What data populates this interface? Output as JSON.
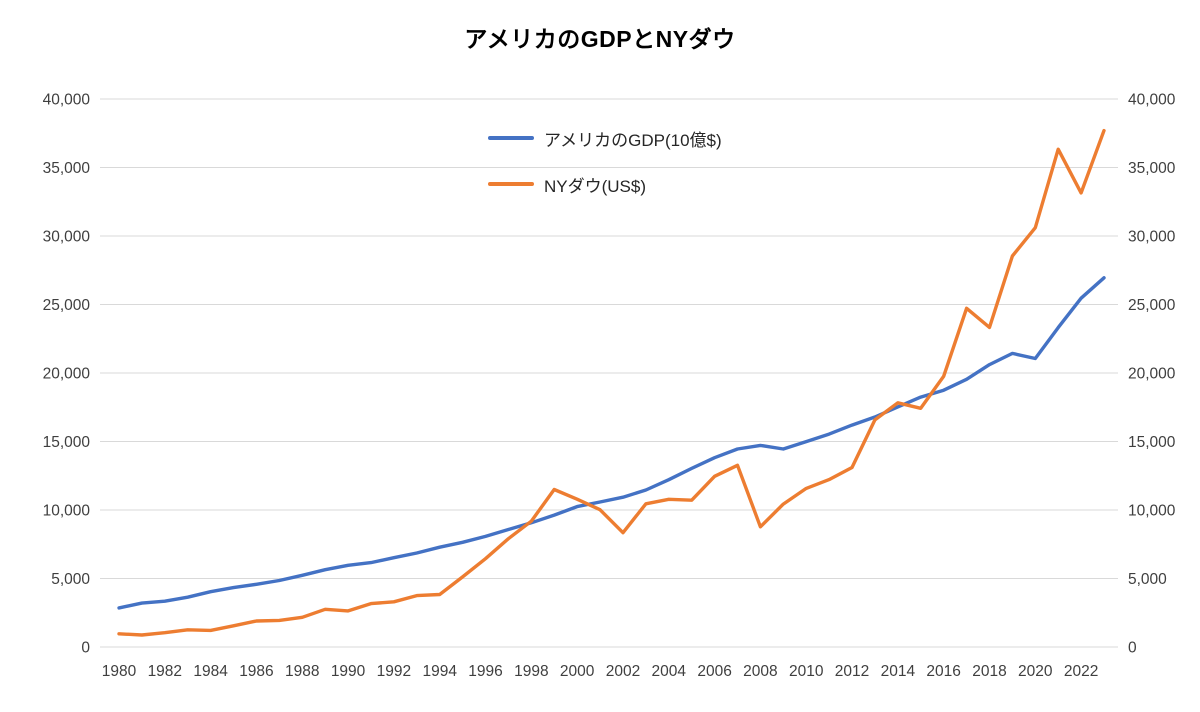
{
  "chart_data": {
    "type": "line",
    "title": "アメリカのGDPとNYダウ",
    "xlabel": "",
    "ylabel": "",
    "ylim": [
      0,
      40000
    ],
    "grid": true,
    "grid_color": "#D9D9D9",
    "axis_text_color": "#3F3F3F",
    "legend_position": "top-center",
    "x": [
      1980,
      1981,
      1982,
      1983,
      1984,
      1985,
      1986,
      1987,
      1988,
      1989,
      1990,
      1991,
      1992,
      1993,
      1994,
      1995,
      1996,
      1997,
      1998,
      1999,
      2000,
      2001,
      2002,
      2003,
      2004,
      2005,
      2006,
      2007,
      2008,
      2009,
      2010,
      2011,
      2012,
      2013,
      2014,
      2015,
      2016,
      2017,
      2018,
      2019,
      2020,
      2021,
      2022,
      2023
    ],
    "xticks": [
      1980,
      1982,
      1984,
      1986,
      1988,
      1990,
      1992,
      1994,
      1996,
      1998,
      2000,
      2002,
      2004,
      2006,
      2008,
      2010,
      2012,
      2014,
      2016,
      2018,
      2020,
      2022
    ],
    "yticks": [
      {
        "value": 0,
        "label": "0"
      },
      {
        "value": 5000,
        "label": "5,000"
      },
      {
        "value": 10000,
        "label": "10,000"
      },
      {
        "value": 15000,
        "label": "15,000"
      },
      {
        "value": 20000,
        "label": "20,000"
      },
      {
        "value": 25000,
        "label": "25,000"
      },
      {
        "value": 30000,
        "label": "30,000"
      },
      {
        "value": 35000,
        "label": "35,000"
      },
      {
        "value": 40000,
        "label": "40,000"
      }
    ],
    "series": [
      {
        "id": "us-gdp",
        "name": "アメリカのGDP(10億$)",
        "color": "#4472C4",
        "values": [
          2857,
          3207,
          3344,
          3634,
          4038,
          4339,
          4580,
          4855,
          5236,
          5642,
          5963,
          6158,
          6520,
          6859,
          7287,
          7640,
          8073,
          8578,
          9063,
          9631,
          10251,
          10582,
          10936,
          11458,
          12214,
          13037,
          13815,
          14452,
          14713,
          14449,
          14992,
          15543,
          16197,
          16785,
          17527,
          18238,
          18745,
          19543,
          20612,
          21433,
          21060,
          23315,
          25463,
          26950
        ]
      },
      {
        "id": "ny-dow",
        "name": "NYダウ(US$)",
        "color": "#ED7D31",
        "values": [
          964,
          875,
          1047,
          1259,
          1212,
          1547,
          1896,
          1939,
          2169,
          2753,
          2634,
          3169,
          3301,
          3754,
          3834,
          5117,
          6448,
          7908,
          9181,
          11497,
          10788,
          10022,
          8342,
          10454,
          10783,
          10718,
          12463,
          13265,
          8776,
          10428,
          11578,
          12218,
          13104,
          16577,
          17823,
          17425,
          19763,
          24719,
          23327,
          28538,
          30606,
          36338,
          33147,
          37690
        ]
      }
    ]
  }
}
